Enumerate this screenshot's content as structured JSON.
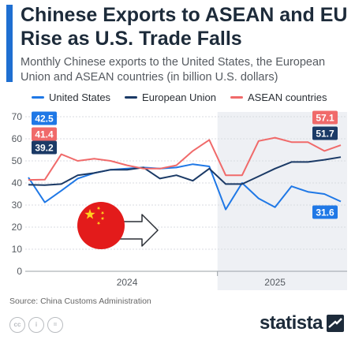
{
  "header": {
    "title": "Chinese Exports to ASEAN and EU Rise as U.S. Trade Falls",
    "subtitle": "Monthly Chinese exports to the United States, the European Union and ASEAN countries (in billion U.S. dollars)"
  },
  "colors": {
    "us": "#1f78e6",
    "eu": "#1b3a66",
    "asean": "#f06a6a",
    "accent": "#1f6fd1"
  },
  "chart_data": {
    "type": "line",
    "title": "Chinese Exports to ASEAN and EU Rise as U.S. Trade Falls",
    "ylim": [
      0,
      70
    ],
    "yticks": [
      0,
      10,
      20,
      30,
      40,
      50,
      60,
      70
    ],
    "x": [
      "2024-01",
      "2024-02",
      "2024-03",
      "2024-04",
      "2024-05",
      "2024-06",
      "2024-07",
      "2024-08",
      "2024-09",
      "2024-10",
      "2024-11",
      "2024-12",
      "2025-01",
      "2025-02",
      "2025-03",
      "2025-04",
      "2025-05",
      "2025-06",
      "2025-07",
      "2025-08"
    ],
    "xaxis_labels": [
      {
        "label": "2024",
        "at": "2024-07"
      },
      {
        "label": "2025",
        "at": "2025-04"
      }
    ],
    "shaded_period_start": "2025-01",
    "grid": true,
    "legend": "top",
    "series": [
      {
        "name": "United States",
        "color": "#1f78e6",
        "start_label": "42.5",
        "end_label": "31.6",
        "values": [
          42.5,
          31.2,
          36.5,
          42.0,
          44.5,
          46.0,
          46.5,
          47.0,
          46.5,
          47.0,
          48.5,
          47.5,
          28.0,
          40.0,
          33.0,
          29.0,
          38.5,
          36.0,
          35.0,
          31.6
        ]
      },
      {
        "name": "European Union",
        "color": "#1b3a66",
        "start_label": "39.2",
        "end_label": "51.7",
        "values": [
          39.2,
          39.0,
          39.5,
          43.5,
          44.5,
          46.0,
          46.0,
          47.0,
          42.0,
          43.5,
          41.0,
          46.5,
          39.5,
          39.5,
          43.0,
          46.5,
          49.5,
          49.5,
          50.5,
          51.7
        ]
      },
      {
        "name": "ASEAN countries",
        "color": "#f06a6a",
        "start_label": "41.4",
        "end_label": "57.1",
        "values": [
          41.4,
          41.5,
          53.0,
          50.0,
          51.0,
          50.0,
          48.0,
          46.5,
          46.5,
          48.0,
          54.5,
          59.5,
          43.5,
          43.5,
          59.0,
          60.5,
          58.5,
          58.5,
          54.5,
          57.1
        ]
      }
    ]
  },
  "footer": {
    "source": "Source: China Customs Administration",
    "brand": "statista"
  }
}
